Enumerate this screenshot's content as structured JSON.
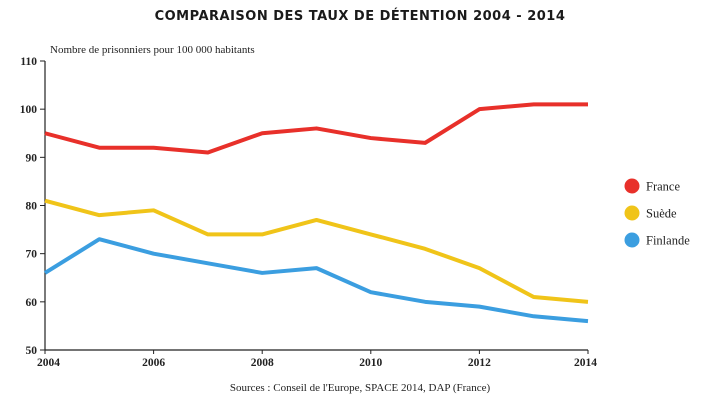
{
  "chart_data": {
    "type": "line",
    "title": "COMPARAISON DES TAUX DE DÉTENTION 2004 - 2014",
    "ylabel": "Nombre de prisonniers pour 100 000 habitants",
    "source": "Sources : Conseil de l'Europe, SPACE 2014, DAP (France)",
    "x": [
      2004,
      2005,
      2006,
      2007,
      2008,
      2009,
      2010,
      2011,
      2012,
      2013,
      2014
    ],
    "xlim": [
      2004,
      2014
    ],
    "ylim": [
      50,
      110
    ],
    "xticks": [
      2004,
      2006,
      2008,
      2010,
      2012,
      2014
    ],
    "yticks": [
      50,
      60,
      70,
      80,
      90,
      100,
      110
    ],
    "grid": false,
    "legend": "right",
    "series": [
      {
        "name": "France",
        "color": "#e8302a",
        "values": [
          95,
          92,
          92,
          91,
          95,
          96,
          94,
          93,
          100,
          101,
          101
        ]
      },
      {
        "name": "Suède",
        "color": "#f0c419",
        "values": [
          81,
          78,
          79,
          74,
          74,
          77,
          74,
          71,
          67,
          61,
          60
        ]
      },
      {
        "name": "Finlande",
        "color": "#3b9ee0",
        "values": [
          66,
          73,
          70,
          68,
          66,
          67,
          62,
          60,
          59,
          57,
          56
        ]
      }
    ]
  }
}
